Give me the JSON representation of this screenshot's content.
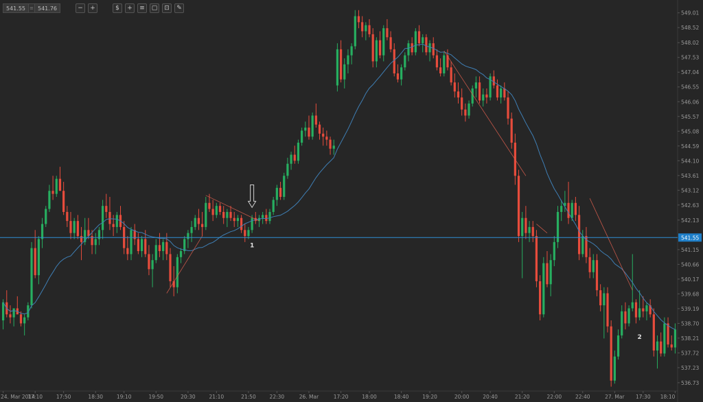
{
  "toolbar": {
    "bid": "541.55",
    "ask": "541.76",
    "separator": "≡",
    "buttons": [
      {
        "name": "zoom-out-icon",
        "glyph": "−"
      },
      {
        "name": "zoom-in-icon",
        "glyph": "+"
      },
      {
        "name": "scale-icon",
        "glyph": "$"
      },
      {
        "name": "crosshair-icon",
        "glyph": "+"
      },
      {
        "name": "indicators-icon",
        "glyph": "≡"
      },
      {
        "name": "layers-icon",
        "glyph": "▢"
      },
      {
        "name": "template-icon",
        "glyph": "⊡"
      },
      {
        "name": "draw-icon",
        "glyph": "✎"
      }
    ]
  },
  "chart_data": {
    "type": "candlestick",
    "y_range": [
      536.5,
      549.3
    ],
    "current_price": 541.55,
    "current_price_label": "541.55",
    "y_ticks": [
      "549.01",
      "548.52",
      "548.02",
      "547.53",
      "547.04",
      "546.55",
      "546.06",
      "545.57",
      "545.08",
      "544.59",
      "544.10",
      "543.61",
      "543.12",
      "542.63",
      "542.13",
      "541.15",
      "540.66",
      "540.17",
      "539.68",
      "539.19",
      "538.70",
      "538.21",
      "537.72",
      "537.23",
      "536.73"
    ],
    "x_labels": [
      "24. Mar 2014",
      "17:10",
      "17:50",
      "18:30",
      "19:10",
      "19:50",
      "20:30",
      "21:10",
      "21:50",
      "22:30",
      "26. Mar",
      "17:20",
      "18:00",
      "18:40",
      "19:20",
      "20:00",
      "20:40",
      "21:20",
      "22:00",
      "22:40",
      "27. Mar",
      "17:30",
      "18:10"
    ],
    "annotations": [
      {
        "text": "1",
        "x_index": 70,
        "price": 541.3
      },
      {
        "text": "2",
        "x_index": 179,
        "price": 538.25
      }
    ],
    "arrow": {
      "x_index": 70,
      "from_price": 543.3,
      "to_price": 542.55
    },
    "colors": {
      "up": "#27ae60",
      "down": "#e74c3c",
      "ma": "#3f7fb5",
      "price_line": "#2e8fd6",
      "trend": "#e0604f",
      "text": "#9a9a9a"
    },
    "candles": [
      [
        538.8,
        539.5,
        538.5,
        539.4
      ],
      [
        539.4,
        539.8,
        538.9,
        539.0
      ],
      [
        539.0,
        539.3,
        538.7,
        538.9
      ],
      [
        538.9,
        539.2,
        538.6,
        539.2
      ],
      [
        539.2,
        539.6,
        539.0,
        539.0
      ],
      [
        539.0,
        539.1,
        538.6,
        538.7
      ],
      [
        538.7,
        539.0,
        538.3,
        538.9
      ],
      [
        538.9,
        539.4,
        538.8,
        539.3
      ],
      [
        539.3,
        541.4,
        539.2,
        541.2
      ],
      [
        541.2,
        541.8,
        540.2,
        540.3
      ],
      [
        540.3,
        541.6,
        540.0,
        541.5
      ],
      [
        541.5,
        542.2,
        541.2,
        542.0
      ],
      [
        542.0,
        542.6,
        541.9,
        542.5
      ],
      [
        542.5,
        543.3,
        542.4,
        543.1
      ],
      [
        543.1,
        543.6,
        542.8,
        543.0
      ],
      [
        543.0,
        543.6,
        542.9,
        543.5
      ],
      [
        543.5,
        543.9,
        543.1,
        543.1
      ],
      [
        543.1,
        543.4,
        542.3,
        542.4
      ],
      [
        542.4,
        542.6,
        541.9,
        542.1
      ],
      [
        542.1,
        542.4,
        541.5,
        541.7
      ],
      [
        541.7,
        542.2,
        541.5,
        542.1
      ],
      [
        542.1,
        542.3,
        541.5,
        541.6
      ],
      [
        541.6,
        541.9,
        540.8,
        541.4
      ],
      [
        541.4,
        542.2,
        541.3,
        541.8
      ],
      [
        541.8,
        542.2,
        541.5,
        541.6
      ],
      [
        541.6,
        541.8,
        541.0,
        541.3
      ],
      [
        541.3,
        541.7,
        541.0,
        541.5
      ],
      [
        541.5,
        541.9,
        541.3,
        541.8
      ],
      [
        541.8,
        542.8,
        541.5,
        542.6
      ],
      [
        542.6,
        543.0,
        542.2,
        542.4
      ],
      [
        542.4,
        542.9,
        541.8,
        542.0
      ],
      [
        542.0,
        542.3,
        541.6,
        541.9
      ],
      [
        541.9,
        542.4,
        541.7,
        542.3
      ],
      [
        542.3,
        542.6,
        541.8,
        541.9
      ],
      [
        541.9,
        542.1,
        541.0,
        541.2
      ],
      [
        541.2,
        541.6,
        540.8,
        541.0
      ],
      [
        541.0,
        541.9,
        540.8,
        541.8
      ],
      [
        541.8,
        542.0,
        541.3,
        541.5
      ],
      [
        541.5,
        541.7,
        541.0,
        541.1
      ],
      [
        541.1,
        541.6,
        540.9,
        541.5
      ],
      [
        541.5,
        541.8,
        540.9,
        541.0
      ],
      [
        541.0,
        541.3,
        540.3,
        540.5
      ],
      [
        540.5,
        541.0,
        539.9,
        540.8
      ],
      [
        540.8,
        541.5,
        540.7,
        541.3
      ],
      [
        541.3,
        541.7,
        540.9,
        541.1
      ],
      [
        541.1,
        541.5,
        540.8,
        541.4
      ],
      [
        541.4,
        541.7,
        540.8,
        541.0
      ],
      [
        541.0,
        541.2,
        539.9,
        540.1
      ],
      [
        540.1,
        540.6,
        539.6,
        539.9
      ],
      [
        539.9,
        541.0,
        539.7,
        540.9
      ],
      [
        540.9,
        541.2,
        540.7,
        541.1
      ],
      [
        541.1,
        541.6,
        541.0,
        541.5
      ],
      [
        541.5,
        541.8,
        541.2,
        541.7
      ],
      [
        541.7,
        542.1,
        541.4,
        541.9
      ],
      [
        541.9,
        542.3,
        541.8,
        542.2
      ],
      [
        542.2,
        542.5,
        541.8,
        542.0
      ],
      [
        542.0,
        542.4,
        541.6,
        541.9
      ],
      [
        541.9,
        542.9,
        541.8,
        542.7
      ],
      [
        542.7,
        543.0,
        542.4,
        542.5
      ],
      [
        542.5,
        542.8,
        542.1,
        542.3
      ],
      [
        542.3,
        542.7,
        542.2,
        542.6
      ],
      [
        542.6,
        542.7,
        542.3,
        542.4
      ],
      [
        542.4,
        542.6,
        542.0,
        542.2
      ],
      [
        542.2,
        542.5,
        541.9,
        542.4
      ],
      [
        542.4,
        542.6,
        542.1,
        542.2
      ],
      [
        542.2,
        542.4,
        541.9,
        542.1
      ],
      [
        542.1,
        542.3,
        541.9,
        542.2
      ],
      [
        542.2,
        542.3,
        541.7,
        541.8
      ],
      [
        541.8,
        542.0,
        541.4,
        541.6
      ],
      [
        541.6,
        541.9,
        541.5,
        541.8
      ],
      [
        541.8,
        542.3,
        541.7,
        542.2
      ],
      [
        542.2,
        542.4,
        542.0,
        542.1
      ],
      [
        542.1,
        542.3,
        541.9,
        542.2
      ],
      [
        542.2,
        542.4,
        542.0,
        542.3
      ],
      [
        542.3,
        542.5,
        542.0,
        542.1
      ],
      [
        542.1,
        542.5,
        542.0,
        542.4
      ],
      [
        542.4,
        542.9,
        542.3,
        542.8
      ],
      [
        542.8,
        543.3,
        542.6,
        543.2
      ],
      [
        543.2,
        543.4,
        542.8,
        542.9
      ],
      [
        542.9,
        543.7,
        542.8,
        543.6
      ],
      [
        543.6,
        544.2,
        543.5,
        544.0
      ],
      [
        544.0,
        544.4,
        543.8,
        544.3
      ],
      [
        544.3,
        544.6,
        544.0,
        544.1
      ],
      [
        544.1,
        544.8,
        544.0,
        544.7
      ],
      [
        544.7,
        545.2,
        544.6,
        545.1
      ],
      [
        545.1,
        545.4,
        544.9,
        545.2
      ],
      [
        545.2,
        545.6,
        544.8,
        544.9
      ],
      [
        544.9,
        545.7,
        544.8,
        545.6
      ],
      [
        545.6,
        546.0,
        545.2,
        545.3
      ],
      [
        545.3,
        545.4,
        544.8,
        545.0
      ],
      [
        545.0,
        545.2,
        544.6,
        544.9
      ],
      [
        544.9,
        545.1,
        544.6,
        544.8
      ],
      [
        544.8,
        544.9,
        544.3,
        544.5
      ],
      [
        544.5,
        544.8,
        544.3,
        544.6
      ],
      [
        546.6,
        548.0,
        546.4,
        547.8
      ],
      [
        547.8,
        548.1,
        546.7,
        546.8
      ],
      [
        546.8,
        547.5,
        546.5,
        547.3
      ],
      [
        547.3,
        547.8,
        547.0,
        547.6
      ],
      [
        547.6,
        548.0,
        547.3,
        547.9
      ],
      [
        547.9,
        549.1,
        547.8,
        548.9
      ],
      [
        548.9,
        549.1,
        548.5,
        548.7
      ],
      [
        548.7,
        548.9,
        548.2,
        548.4
      ],
      [
        548.4,
        548.7,
        548.1,
        548.6
      ],
      [
        548.6,
        548.8,
        548.2,
        548.3
      ],
      [
        548.3,
        548.5,
        547.2,
        547.4
      ],
      [
        547.4,
        548.2,
        547.2,
        548.1
      ],
      [
        548.1,
        548.4,
        547.5,
        547.6
      ],
      [
        547.6,
        548.6,
        547.4,
        548.5
      ],
      [
        548.5,
        548.8,
        548.1,
        548.2
      ],
      [
        548.2,
        548.4,
        547.7,
        547.8
      ],
      [
        547.8,
        548.0,
        546.9,
        547.0
      ],
      [
        547.0,
        547.3,
        546.7,
        546.8
      ],
      [
        546.8,
        547.3,
        546.6,
        547.2
      ],
      [
        547.2,
        547.7,
        547.1,
        547.6
      ],
      [
        547.6,
        548.1,
        547.4,
        548.0
      ],
      [
        548.0,
        548.2,
        547.6,
        547.7
      ],
      [
        547.7,
        548.5,
        547.6,
        548.4
      ],
      [
        548.4,
        548.6,
        547.9,
        548.0
      ],
      [
        548.0,
        548.3,
        547.7,
        548.2
      ],
      [
        548.2,
        548.3,
        547.6,
        547.7
      ],
      [
        547.7,
        548.1,
        547.4,
        548.0
      ],
      [
        548.0,
        548.2,
        547.5,
        547.6
      ],
      [
        547.6,
        547.8,
        547.1,
        547.2
      ],
      [
        547.2,
        547.5,
        546.9,
        547.0
      ],
      [
        547.0,
        547.7,
        546.9,
        547.6
      ],
      [
        547.6,
        547.8,
        547.1,
        547.2
      ],
      [
        547.2,
        547.4,
        546.6,
        546.7
      ],
      [
        546.7,
        547.0,
        546.2,
        546.4
      ],
      [
        546.4,
        546.7,
        546.0,
        546.2
      ],
      [
        546.2,
        546.5,
        545.6,
        545.8
      ],
      [
        545.8,
        546.0,
        545.4,
        545.6
      ],
      [
        545.6,
        546.1,
        545.5,
        546.0
      ],
      [
        546.0,
        546.6,
        545.9,
        546.5
      ],
      [
        546.5,
        546.9,
        546.2,
        546.7
      ],
      [
        546.7,
        546.9,
        546.0,
        546.1
      ],
      [
        546.1,
        546.5,
        545.9,
        546.3
      ],
      [
        546.3,
        546.5,
        546.0,
        546.2
      ],
      [
        546.2,
        547.0,
        546.1,
        546.9
      ],
      [
        546.9,
        547.1,
        546.5,
        546.6
      ],
      [
        546.6,
        546.8,
        546.1,
        546.2
      ],
      [
        546.2,
        546.6,
        546.0,
        546.5
      ],
      [
        546.5,
        546.7,
        546.1,
        546.2
      ],
      [
        546.2,
        546.4,
        545.3,
        545.5
      ],
      [
        545.5,
        545.7,
        544.5,
        544.7
      ],
      [
        544.7,
        545.0,
        543.3,
        543.6
      ],
      [
        543.6,
        543.8,
        541.4,
        541.6
      ],
      [
        541.6,
        542.4,
        540.2,
        542.2
      ],
      [
        542.2,
        542.6,
        541.5,
        541.7
      ],
      [
        541.7,
        542.1,
        541.4,
        541.9
      ],
      [
        541.9,
        542.1,
        541.4,
        541.6
      ],
      [
        541.6,
        541.8,
        539.9,
        540.1
      ],
      [
        540.1,
        540.3,
        538.8,
        539.0
      ],
      [
        539.0,
        540.9,
        538.9,
        540.7
      ],
      [
        540.7,
        541.1,
        539.9,
        540.0
      ],
      [
        540.0,
        541.0,
        539.6,
        540.8
      ],
      [
        540.8,
        541.6,
        540.6,
        541.4
      ],
      [
        541.4,
        542.6,
        541.2,
        542.4
      ],
      [
        542.4,
        542.8,
        542.1,
        542.6
      ],
      [
        542.6,
        543.1,
        542.4,
        542.7
      ],
      [
        542.7,
        543.4,
        542.0,
        542.2
      ],
      [
        542.2,
        542.8,
        542.1,
        542.7
      ],
      [
        542.7,
        542.9,
        542.1,
        542.3
      ],
      [
        542.3,
        542.6,
        540.8,
        541.0
      ],
      [
        541.0,
        541.8,
        540.9,
        541.6
      ],
      [
        541.6,
        541.9,
        540.7,
        540.9
      ],
      [
        540.9,
        541.2,
        540.2,
        540.4
      ],
      [
        540.4,
        541.0,
        540.2,
        540.8
      ],
      [
        540.8,
        541.0,
        539.6,
        539.8
      ],
      [
        539.8,
        540.0,
        539.1,
        539.3
      ],
      [
        539.3,
        539.9,
        538.2,
        539.7
      ],
      [
        539.7,
        539.9,
        538.4,
        538.6
      ],
      [
        538.6,
        538.8,
        536.6,
        536.8
      ],
      [
        536.8,
        537.8,
        536.7,
        537.6
      ],
      [
        537.6,
        538.5,
        537.5,
        538.3
      ],
      [
        538.3,
        539.3,
        538.2,
        539.1
      ],
      [
        539.1,
        539.4,
        538.5,
        538.7
      ],
      [
        538.7,
        539.3,
        538.6,
        539.2
      ],
      [
        539.2,
        541.0,
        539.1,
        539.4
      ],
      [
        539.4,
        539.5,
        538.7,
        538.9
      ],
      [
        538.9,
        539.8,
        538.8,
        539.2
      ],
      [
        539.2,
        539.6,
        538.9,
        539.1
      ],
      [
        539.1,
        539.4,
        538.8,
        539.3
      ],
      [
        539.3,
        539.5,
        538.9,
        539.0
      ],
      [
        539.0,
        539.2,
        537.6,
        537.8
      ],
      [
        537.8,
        538.3,
        537.2,
        538.1
      ],
      [
        538.1,
        538.4,
        537.6,
        537.7
      ],
      [
        537.7,
        538.9,
        537.6,
        538.7
      ],
      [
        538.7,
        538.9,
        537.9,
        538.0
      ],
      [
        538.0,
        538.3,
        537.8,
        537.9
      ],
      [
        537.9,
        538.7,
        537.7,
        538.5
      ]
    ],
    "trendlines": [
      {
        "from": [
          57,
          542.95
        ],
        "to": [
          72,
          542.1
        ]
      },
      {
        "from": [
          46,
          539.7
        ],
        "to": [
          56,
          541.6
        ]
      },
      {
        "from": [
          124,
          547.75
        ],
        "to": [
          147,
          543.6
        ]
      },
      {
        "from": [
          150,
          542.0
        ],
        "to": [
          153,
          541.7
        ]
      },
      {
        "from": [
          165,
          542.85
        ],
        "to": [
          177,
          539.8
        ]
      }
    ]
  }
}
